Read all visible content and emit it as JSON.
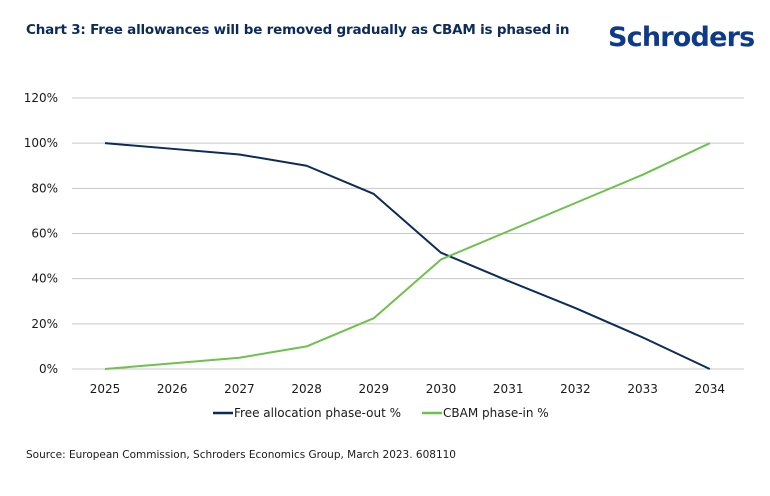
{
  "header": {
    "title": "Chart 3: Free allowances will be removed gradually as CBAM is phased in",
    "logo": "Schroders"
  },
  "footer": {
    "source": "Source: European Commission, Schroders Economics Group, March 2023. 608110"
  },
  "colors": {
    "free_allocation": "#0b2b5c",
    "cbam": "#6cc24a",
    "grid": "#c8c8c8",
    "title": "#0b2b5c",
    "logo": "#0e3a8a"
  },
  "chart_data": {
    "type": "line",
    "title": "Chart 3: Free allowances will be removed gradually as CBAM is phased in",
    "xlabel": "",
    "ylabel": "",
    "categories": [
      "2025",
      "2026",
      "2027",
      "2028",
      "2029",
      "2030",
      "2031",
      "2032",
      "2033",
      "2034"
    ],
    "series": [
      {
        "name": "Free allocation phase-out %",
        "color": "#0b2b5c",
        "values": [
          100,
          97.5,
          95,
          90,
          77.5,
          51.5,
          39,
          27,
          14,
          0
        ]
      },
      {
        "name": "CBAM phase-in %",
        "color": "#6cc24a",
        "values": [
          0,
          2.5,
          5,
          10,
          22.5,
          48.5,
          61,
          73.5,
          86,
          100
        ]
      }
    ],
    "ylim": [
      0,
      120
    ],
    "yticks": [
      0,
      20,
      40,
      60,
      80,
      100,
      120
    ],
    "ytick_labels": [
      "0%",
      "20%",
      "40%",
      "60%",
      "80%",
      "100%",
      "120%"
    ],
    "grid": true,
    "legend_position": "bottom-center"
  }
}
